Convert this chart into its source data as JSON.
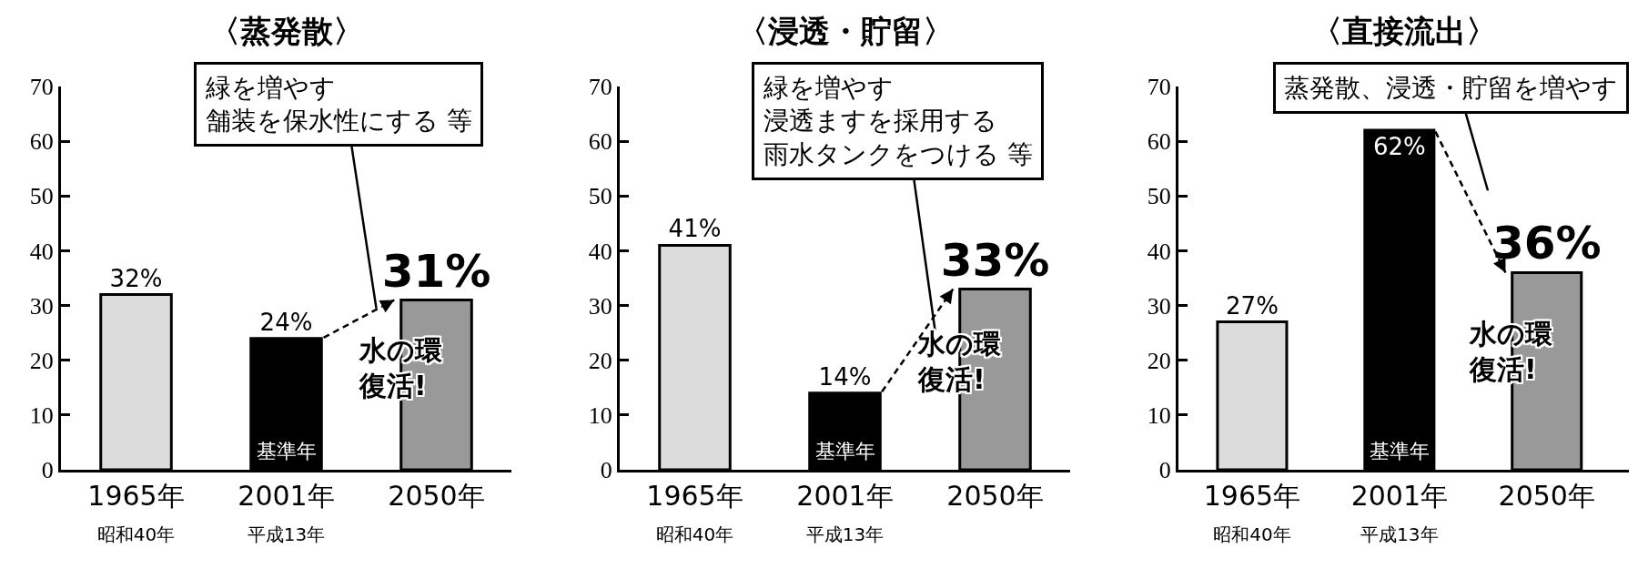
{
  "chart_data": [
    {
      "type": "bar",
      "title": "〈蒸発散〉",
      "categories": [
        "1965年昭和40年",
        "2001年平成13年",
        "2050年"
      ],
      "values": [
        32,
        24,
        31
      ],
      "value_labels": [
        "32%",
        "24%",
        "31%"
      ],
      "colors": [
        "#dcdcdc",
        "#000000",
        "#999999"
      ],
      "ylim": [
        0,
        70
      ],
      "yticks": [
        0,
        10,
        20,
        30,
        40,
        50,
        60,
        70
      ],
      "annotations": [
        "緑を増やす舗装を保水性にする 等",
        "基準年",
        "水の環復活!"
      ]
    },
    {
      "type": "bar",
      "title": "〈浸透・貯留〉",
      "categories": [
        "1965年昭和40年",
        "2001年平成13年",
        "2050年"
      ],
      "values": [
        41,
        14,
        33
      ],
      "value_labels": [
        "41%",
        "14%",
        "33%"
      ],
      "colors": [
        "#dcdcdc",
        "#000000",
        "#999999"
      ],
      "ylim": [
        0,
        70
      ],
      "yticks": [
        0,
        10,
        20,
        30,
        40,
        50,
        60,
        70
      ],
      "annotations": [
        "緑を増やす浸透ますを採用する雨水タンクをつける 等",
        "基準年",
        "水の環復活!"
      ]
    },
    {
      "type": "bar",
      "title": "〈直接流出〉",
      "categories": [
        "1965年昭和40年",
        "2001年平成13年",
        "2050年"
      ],
      "values": [
        27,
        62,
        36
      ],
      "value_labels": [
        "27%",
        "62%",
        "36%"
      ],
      "colors": [
        "#dcdcdc",
        "#000000",
        "#999999"
      ],
      "ylim": [
        0,
        70
      ],
      "yticks": [
        0,
        10,
        20,
        30,
        40,
        50,
        60,
        70
      ],
      "annotations": [
        "蒸発散、浸透・貯留を増やす",
        "基準年",
        "水の環復活!"
      ]
    }
  ]
}
